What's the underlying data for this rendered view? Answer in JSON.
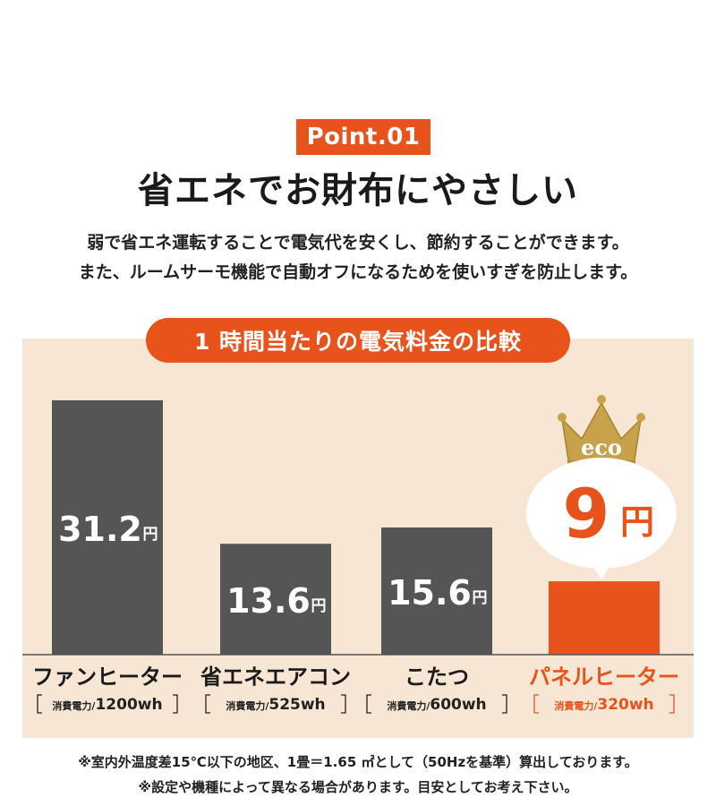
{
  "header": {
    "badge": "Point.01",
    "title": "省エネでお財布にやさしい",
    "description_line1": "弱で省エネ運転することで電気代を安くし、節約することができます。",
    "description_line2": "また、ルームサーモ機能で自動オフになるためを使いすぎを防止します。"
  },
  "comparison": {
    "title": "1 時間当たりの電気料金の比較",
    "eco_label": "eco",
    "highlight_value": "9",
    "highlight_unit": "円"
  },
  "colors": {
    "accent": "#e8531c",
    "bar_gray": "#555555",
    "panel_bg": "#f6e6d3",
    "crown_gold": "#c8a24a"
  },
  "chart_data": {
    "type": "bar",
    "unit": "円",
    "categories": [
      "ファンヒーター",
      "省エネエアコン",
      "こたつ",
      "パネルヒーター"
    ],
    "values": [
      31.2,
      13.6,
      15.6,
      9
    ],
    "value_labels": [
      "31.2",
      "13.6",
      "15.6",
      ""
    ],
    "power_prefix": "消費電力/",
    "power_values": [
      "1200wh",
      "525wh",
      "600wh",
      "320wh"
    ],
    "highlight_index": 3
  },
  "notes": {
    "line1": "※室内外温度差15℃以下の地区、1畳＝1.65 ㎡として（50Hzを基準）算出しております。",
    "line2": "※設定や機種によって異なる場合があります。目安としてお考え下さい。"
  }
}
